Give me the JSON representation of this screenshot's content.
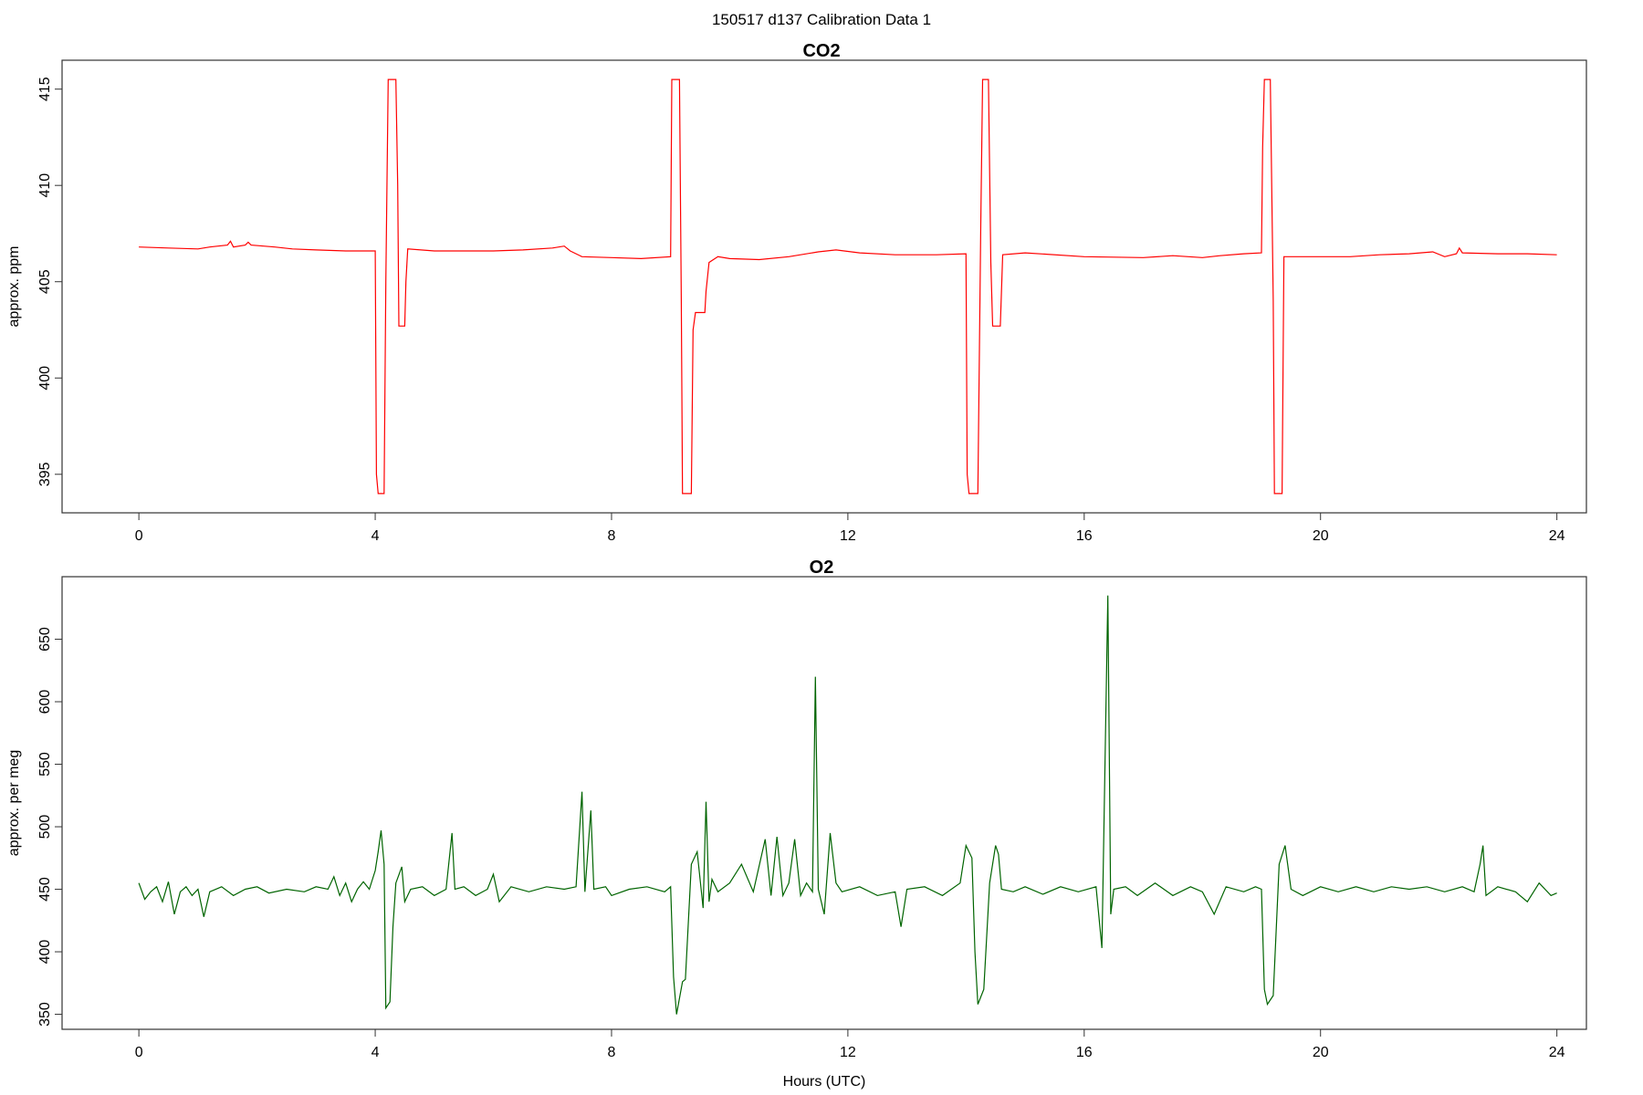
{
  "figure": {
    "suptitle": "150517   d137   Calibration Data 1"
  },
  "chart_data": [
    {
      "type": "line",
      "title": "CO2",
      "xlabel": "",
      "ylabel": "approx. ppm",
      "xlim": [
        -1.3,
        24.5
      ],
      "ylim": [
        393,
        416.5
      ],
      "xticks": [
        0,
        4,
        8,
        12,
        16,
        20,
        24
      ],
      "yticks": [
        395,
        400,
        405,
        410,
        415
      ],
      "grid": false,
      "color": "#ff0000",
      "series": [
        {
          "points": [
            [
              0,
              406.8
            ],
            [
              0.5,
              406.75
            ],
            [
              1.0,
              406.7
            ],
            [
              1.2,
              406.8
            ],
            [
              1.5,
              406.9
            ],
            [
              1.55,
              407.1
            ],
            [
              1.6,
              406.8
            ],
            [
              1.8,
              406.9
            ],
            [
              1.85,
              407.05
            ],
            [
              1.9,
              406.9
            ],
            [
              2.3,
              406.8
            ],
            [
              2.6,
              406.7
            ],
            [
              3.0,
              406.65
            ],
            [
              3.5,
              406.6
            ],
            [
              4.0,
              406.6
            ],
            [
              4.02,
              395.0
            ],
            [
              4.05,
              394.0
            ],
            [
              4.15,
              394.0
            ],
            [
              4.18,
              405.0
            ],
            [
              4.22,
              415.5
            ],
            [
              4.35,
              415.5
            ],
            [
              4.38,
              410.0
            ],
            [
              4.4,
              402.7
            ],
            [
              4.5,
              402.7
            ],
            [
              4.52,
              405.0
            ],
            [
              4.55,
              406.7
            ],
            [
              5.0,
              406.6
            ],
            [
              6.0,
              406.6
            ],
            [
              6.5,
              406.65
            ],
            [
              7.0,
              406.75
            ],
            [
              7.2,
              406.85
            ],
            [
              7.3,
              406.6
            ],
            [
              7.5,
              406.3
            ],
            [
              8.0,
              406.25
            ],
            [
              8.5,
              406.2
            ],
            [
              9.0,
              406.3
            ],
            [
              9.02,
              415.5
            ],
            [
              9.15,
              415.5
            ],
            [
              9.18,
              404.0
            ],
            [
              9.2,
              394.0
            ],
            [
              9.35,
              394.0
            ],
            [
              9.38,
              402.5
            ],
            [
              9.42,
              403.4
            ],
            [
              9.58,
              403.4
            ],
            [
              9.6,
              404.5
            ],
            [
              9.65,
              406.0
            ],
            [
              9.8,
              406.3
            ],
            [
              10.0,
              406.2
            ],
            [
              10.5,
              406.15
            ],
            [
              11.0,
              406.3
            ],
            [
              11.5,
              406.55
            ],
            [
              11.8,
              406.65
            ],
            [
              12.2,
              406.5
            ],
            [
              12.8,
              406.4
            ],
            [
              13.5,
              406.4
            ],
            [
              14.0,
              406.45
            ],
            [
              14.02,
              395.0
            ],
            [
              14.05,
              394.0
            ],
            [
              14.2,
              394.0
            ],
            [
              14.25,
              408.0
            ],
            [
              14.28,
              415.5
            ],
            [
              14.38,
              415.5
            ],
            [
              14.42,
              406.0
            ],
            [
              14.45,
              402.7
            ],
            [
              14.58,
              402.7
            ],
            [
              14.62,
              406.4
            ],
            [
              15.0,
              406.5
            ],
            [
              16.0,
              406.3
            ],
            [
              17.0,
              406.25
            ],
            [
              17.5,
              406.35
            ],
            [
              18.0,
              406.25
            ],
            [
              18.3,
              406.35
            ],
            [
              18.7,
              406.45
            ],
            [
              19.0,
              406.5
            ],
            [
              19.02,
              412.0
            ],
            [
              19.05,
              415.5
            ],
            [
              19.15,
              415.5
            ],
            [
              19.2,
              404.0
            ],
            [
              19.22,
              394.0
            ],
            [
              19.35,
              394.0
            ],
            [
              19.38,
              406.3
            ],
            [
              19.6,
              406.3
            ],
            [
              20.0,
              406.3
            ],
            [
              20.5,
              406.3
            ],
            [
              21.0,
              406.4
            ],
            [
              21.5,
              406.45
            ],
            [
              21.9,
              406.55
            ],
            [
              22.1,
              406.3
            ],
            [
              22.3,
              406.45
            ],
            [
              22.35,
              406.75
            ],
            [
              22.4,
              406.5
            ],
            [
              23.0,
              406.45
            ],
            [
              23.5,
              406.45
            ],
            [
              24.0,
              406.4
            ]
          ]
        }
      ]
    },
    {
      "type": "line",
      "title": "O2",
      "xlabel": "Hours (UTC)",
      "ylabel": "approx. per meg",
      "xlim": [
        -1.3,
        24.5
      ],
      "ylim": [
        338,
        700
      ],
      "xticks": [
        0,
        4,
        8,
        12,
        16,
        20,
        24
      ],
      "yticks": [
        350,
        400,
        450,
        500,
        550,
        600,
        650
      ],
      "grid": false,
      "color": "#006400",
      "series": [
        {
          "points": [
            [
              0,
              455
            ],
            [
              0.1,
              442
            ],
            [
              0.2,
              448
            ],
            [
              0.3,
              452
            ],
            [
              0.4,
              440
            ],
            [
              0.5,
              456
            ],
            [
              0.6,
              430
            ],
            [
              0.7,
              448
            ],
            [
              0.8,
              452
            ],
            [
              0.9,
              445
            ],
            [
              1.0,
              450
            ],
            [
              1.1,
              428
            ],
            [
              1.2,
              448
            ],
            [
              1.4,
              452
            ],
            [
              1.6,
              445
            ],
            [
              1.8,
              450
            ],
            [
              2.0,
              452
            ],
            [
              2.2,
              447
            ],
            [
              2.5,
              450
            ],
            [
              2.8,
              448
            ],
            [
              3.0,
              452
            ],
            [
              3.2,
              450
            ],
            [
              3.3,
              460
            ],
            [
              3.4,
              445
            ],
            [
              3.5,
              455
            ],
            [
              3.6,
              440
            ],
            [
              3.7,
              450
            ],
            [
              3.8,
              456
            ],
            [
              3.9,
              450
            ],
            [
              4.0,
              465
            ],
            [
              4.05,
              480
            ],
            [
              4.1,
              497
            ],
            [
              4.15,
              470
            ],
            [
              4.18,
              355
            ],
            [
              4.25,
              360
            ],
            [
              4.3,
              420
            ],
            [
              4.35,
              455
            ],
            [
              4.45,
              468
            ],
            [
              4.5,
              440
            ],
            [
              4.6,
              450
            ],
            [
              4.8,
              452
            ],
            [
              5.0,
              445
            ],
            [
              5.2,
              450
            ],
            [
              5.3,
              495
            ],
            [
              5.35,
              450
            ],
            [
              5.5,
              452
            ],
            [
              5.7,
              445
            ],
            [
              5.9,
              450
            ],
            [
              6.0,
              462
            ],
            [
              6.1,
              440
            ],
            [
              6.3,
              452
            ],
            [
              6.6,
              448
            ],
            [
              6.9,
              452
            ],
            [
              7.2,
              450
            ],
            [
              7.4,
              452
            ],
            [
              7.5,
              528
            ],
            [
              7.55,
              448
            ],
            [
              7.65,
              513
            ],
            [
              7.7,
              450
            ],
            [
              7.9,
              452
            ],
            [
              8.0,
              445
            ],
            [
              8.3,
              450
            ],
            [
              8.6,
              452
            ],
            [
              8.9,
              448
            ],
            [
              9.0,
              452
            ],
            [
              9.05,
              380
            ],
            [
              9.1,
              350
            ],
            [
              9.2,
              376
            ],
            [
              9.25,
              378
            ],
            [
              9.35,
              470
            ],
            [
              9.45,
              480
            ],
            [
              9.55,
              435
            ],
            [
              9.6,
              520
            ],
            [
              9.65,
              440
            ],
            [
              9.7,
              458
            ],
            [
              9.8,
              448
            ],
            [
              10.0,
              455
            ],
            [
              10.2,
              470
            ],
            [
              10.4,
              448
            ],
            [
              10.6,
              490
            ],
            [
              10.7,
              445
            ],
            [
              10.8,
              492
            ],
            [
              10.9,
              445
            ],
            [
              11.0,
              455
            ],
            [
              11.1,
              490
            ],
            [
              11.2,
              445
            ],
            [
              11.3,
              455
            ],
            [
              11.4,
              448
            ],
            [
              11.45,
              620
            ],
            [
              11.5,
              450
            ],
            [
              11.6,
              430
            ],
            [
              11.7,
              495
            ],
            [
              11.8,
              455
            ],
            [
              11.9,
              448
            ],
            [
              12.2,
              452
            ],
            [
              12.5,
              445
            ],
            [
              12.8,
              448
            ],
            [
              12.9,
              420
            ],
            [
              13.0,
              450
            ],
            [
              13.3,
              452
            ],
            [
              13.6,
              445
            ],
            [
              13.9,
              455
            ],
            [
              14.0,
              485
            ],
            [
              14.1,
              475
            ],
            [
              14.15,
              400
            ],
            [
              14.2,
              358
            ],
            [
              14.3,
              370
            ],
            [
              14.4,
              455
            ],
            [
              14.5,
              485
            ],
            [
              14.55,
              478
            ],
            [
              14.6,
              450
            ],
            [
              14.8,
              448
            ],
            [
              15.0,
              452
            ],
            [
              15.3,
              446
            ],
            [
              15.6,
              452
            ],
            [
              15.9,
              448
            ],
            [
              16.2,
              452
            ],
            [
              16.3,
              403
            ],
            [
              16.4,
              685
            ],
            [
              16.45,
              430
            ],
            [
              16.5,
              450
            ],
            [
              16.7,
              452
            ],
            [
              16.9,
              445
            ],
            [
              17.2,
              455
            ],
            [
              17.5,
              445
            ],
            [
              17.8,
              452
            ],
            [
              18.0,
              448
            ],
            [
              18.2,
              430
            ],
            [
              18.4,
              452
            ],
            [
              18.7,
              448
            ],
            [
              18.9,
              452
            ],
            [
              19.0,
              450
            ],
            [
              19.05,
              370
            ],
            [
              19.1,
              358
            ],
            [
              19.2,
              365
            ],
            [
              19.3,
              470
            ],
            [
              19.4,
              485
            ],
            [
              19.5,
              450
            ],
            [
              19.7,
              445
            ],
            [
              20.0,
              452
            ],
            [
              20.3,
              448
            ],
            [
              20.6,
              452
            ],
            [
              20.9,
              448
            ],
            [
              21.2,
              452
            ],
            [
              21.5,
              450
            ],
            [
              21.8,
              452
            ],
            [
              22.1,
              448
            ],
            [
              22.4,
              452
            ],
            [
              22.6,
              448
            ],
            [
              22.7,
              470
            ],
            [
              22.75,
              485
            ],
            [
              22.8,
              445
            ],
            [
              23.0,
              452
            ],
            [
              23.3,
              448
            ],
            [
              23.5,
              440
            ],
            [
              23.7,
              455
            ],
            [
              23.9,
              445
            ],
            [
              24.0,
              447
            ]
          ]
        }
      ]
    }
  ]
}
